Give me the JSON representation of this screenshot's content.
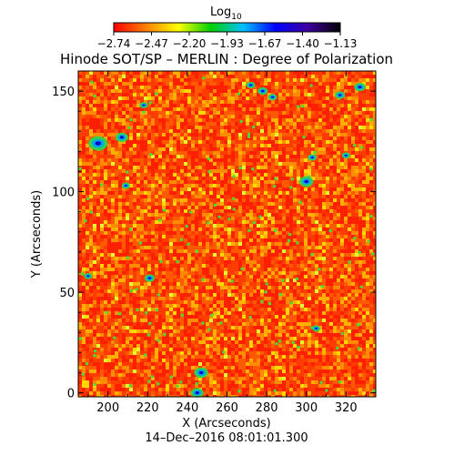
{
  "chart_data": {
    "type": "heatmap",
    "title": "Hinode SOT/SP – MERLIN : Degree of Polarization",
    "xlabel": "X (Arcseconds)",
    "ylabel": "Y (Arcseconds)",
    "footer": "14–Dec–2016 08:01:01.300",
    "xlim": [
      185,
      335
    ],
    "ylim": [
      -2,
      160
    ],
    "x_ticks": [
      200,
      220,
      240,
      260,
      280,
      300,
      320
    ],
    "y_ticks": [
      0,
      50,
      100,
      150
    ],
    "colorbar": {
      "label": "Log",
      "label_sub": "10",
      "ticks": [
        "−2.74",
        "−2.47",
        "−2.20",
        "−1.93",
        "−1.67",
        "−1.40",
        "−1.13"
      ],
      "range": [
        -2.74,
        -1.13
      ],
      "colormap": [
        "#ff0000",
        "#ff8000",
        "#ffff00",
        "#00d000",
        "#00c0ff",
        "#0000ff",
        "#4000a0",
        "#000000"
      ]
    },
    "features": [
      {
        "x": 195,
        "y": 124,
        "r": 3.0
      },
      {
        "x": 207,
        "y": 127,
        "r": 2.0
      },
      {
        "x": 221,
        "y": 57,
        "r": 1.6
      },
      {
        "x": 247,
        "y": 10,
        "r": 2.2
      },
      {
        "x": 245,
        "y": 0,
        "r": 2.0
      },
      {
        "x": 272,
        "y": 153,
        "r": 1.4
      },
      {
        "x": 278,
        "y": 150,
        "r": 1.6
      },
      {
        "x": 283,
        "y": 147,
        "r": 1.4
      },
      {
        "x": 300,
        "y": 105,
        "r": 2.2
      },
      {
        "x": 303,
        "y": 117,
        "r": 1.4
      },
      {
        "x": 317,
        "y": 148,
        "r": 1.6
      },
      {
        "x": 327,
        "y": 152,
        "r": 1.8
      },
      {
        "x": 320,
        "y": 118,
        "r": 1.3
      },
      {
        "x": 218,
        "y": 143,
        "r": 1.3
      },
      {
        "x": 190,
        "y": 58,
        "r": 1.3
      },
      {
        "x": 209,
        "y": 103,
        "r": 1.3
      },
      {
        "x": 305,
        "y": 32,
        "r": 1.3
      }
    ]
  }
}
